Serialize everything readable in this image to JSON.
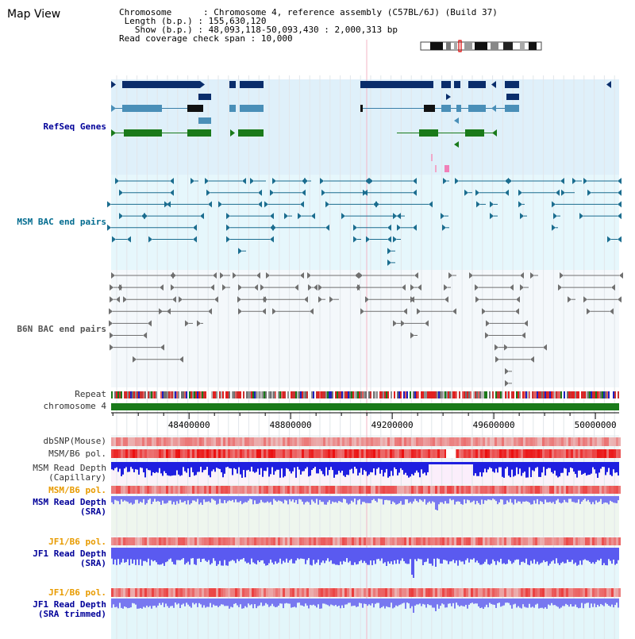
{
  "page": {
    "title": "Map View",
    "info": {
      "chromosome_label": "Chromosome",
      "chromosome_value": "Chromosome 4, reference assembly (C57BL/6J) (Build 37)",
      "length_label": "Length (b.p.)",
      "length_value": "155,630,120",
      "show_label": "Show (b.p.)",
      "show_value": "48,093,118-50,093,430 : 2,000,313 bp",
      "coverage_label": "Read coverage check span",
      "coverage_value": "10,000"
    }
  },
  "tracks": {
    "refseq": "RefSeq Genes",
    "msm_bac": "MSM BAC end pairs",
    "b6n_bac": "B6N BAC end pairs",
    "repeat": "Repeat",
    "chromosome": "chromosome 4",
    "dbsnp": "dbSNP(Mouse)",
    "msm_b6_pol_1": "MSM/B6 pol.",
    "msm_depth_cap": "MSM Read Depth\n(Capillary)",
    "msm_b6_pol_2": "MSM/B6 pol.",
    "msm_depth_sra": "MSM Read Depth\n(SRA)",
    "jf1_b6_pol_1": "JF1/B6 pol.",
    "jf1_depth_sra": "JF1 Read Depth\n(SRA)",
    "jf1_b6_pol_2": "JF1/B6 pol.",
    "jf1_depth_trim": "JF1 Read Depth\n(SRA trimmed)"
  },
  "axis": {
    "range": [
      48093118,
      50093430
    ],
    "ticks": [
      "48400000",
      "48800000",
      "49200000",
      "49600000",
      "50000000"
    ],
    "tick_values": [
      48400000,
      48800000,
      49200000,
      49600000,
      50000000
    ]
  },
  "colors": {
    "refseq_dark": "#0a2d6b",
    "refseq_mid": "#4a8fb8",
    "refseq_green": "#1a7a1a",
    "bac_teal": "#1b6d8f",
    "bac_gray": "#707070",
    "chromosome_green": "#1a7a1a",
    "depth_blue": "#1f1fe0",
    "depth_light_blue": "#7878f0",
    "polymorphism_red": "#e02020"
  }
}
